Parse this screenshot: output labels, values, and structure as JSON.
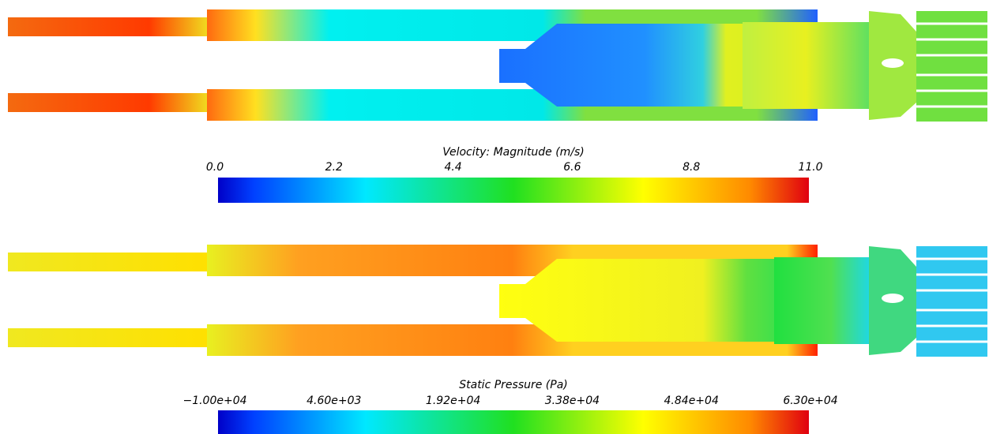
{
  "colorbars": [
    {
      "title": "Velocity: Magnitude (m/s)",
      "ticks": [
        "0.0",
        "2.2",
        "4.4",
        "6.6",
        "8.8",
        "11.0"
      ]
    },
    {
      "title": "Static Pressure (Pa)",
      "ticks": [
        "−1.00e+04",
        "4.60e+03",
        "1.92e+04",
        "3.38e+04",
        "4.84e+04",
        "6.30e+04"
      ]
    }
  ]
}
